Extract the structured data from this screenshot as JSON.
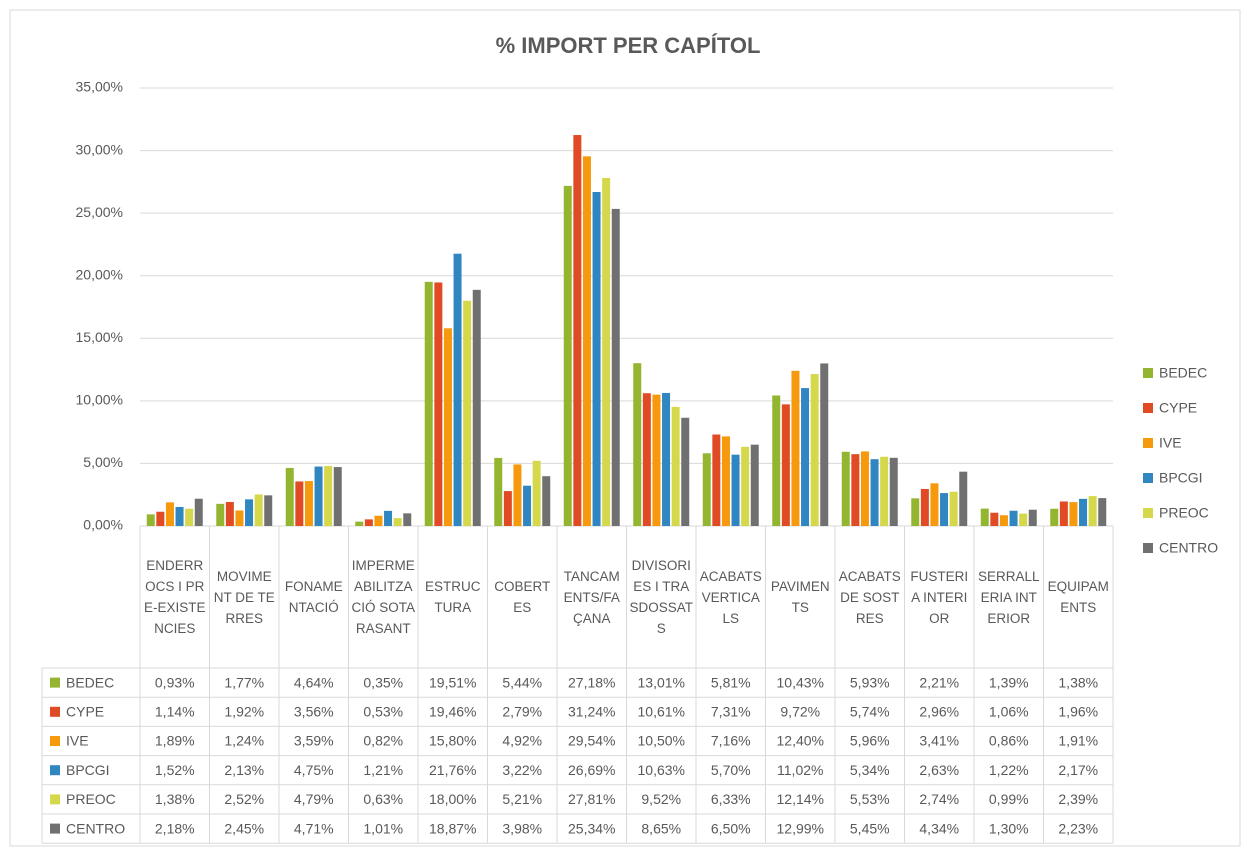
{
  "chart_data": {
    "type": "bar",
    "title": "% IMPORT PER CAPÍTOL",
    "categories": [
      "ENDERROCS I PRE-EXISTENCIES",
      "MOVIMENT DE TERRES",
      "FONAMENTACIÓ",
      "IMPERMEABILITZACIÓ SOTA RASANT",
      "ESTRUCTURA",
      "COBERTES",
      "TANCAMENTS/FAÇANA",
      "DIVISORIES I TRASDOSSATS",
      "ACABATS VERTICALS",
      "PAVIMENTS",
      "ACABATS DE SOSTRES",
      "FUSTERIA INTERIOR",
      "SERRALLERIA INTERIOR",
      "EQUIPAMENTS"
    ],
    "series": [
      {
        "name": "BEDEC",
        "color": "#93b52f",
        "values": [
          0.93,
          1.77,
          4.64,
          0.35,
          19.51,
          5.44,
          27.18,
          13.01,
          5.81,
          10.43,
          5.93,
          2.21,
          1.39,
          1.38
        ],
        "value_labels": [
          "0,93%",
          "1,77%",
          "4,64%",
          "0,35%",
          "19,51%",
          "5,44%",
          "27,18%",
          "13,01%",
          "5,81%",
          "10,43%",
          "5,93%",
          "2,21%",
          "1,39%",
          "1,38%"
        ]
      },
      {
        "name": "CYPE",
        "color": "#e04a24",
        "values": [
          1.14,
          1.92,
          3.56,
          0.53,
          19.46,
          2.79,
          31.24,
          10.61,
          7.31,
          9.72,
          5.74,
          2.96,
          1.06,
          1.96
        ],
        "value_labels": [
          "1,14%",
          "1,92%",
          "3,56%",
          "0,53%",
          "19,46%",
          "2,79%",
          "31,24%",
          "10,61%",
          "7,31%",
          "9,72%",
          "5,74%",
          "2,96%",
          "1,06%",
          "1,96%"
        ]
      },
      {
        "name": "IVE",
        "color": "#f7990c",
        "values": [
          1.89,
          1.24,
          3.59,
          0.82,
          15.8,
          4.92,
          29.54,
          10.5,
          7.16,
          12.4,
          5.96,
          3.41,
          0.86,
          1.91
        ],
        "value_labels": [
          "1,89%",
          "1,24%",
          "3,59%",
          "0,82%",
          "15,80%",
          "4,92%",
          "29,54%",
          "10,50%",
          "7,16%",
          "12,40%",
          "5,96%",
          "3,41%",
          "0,86%",
          "1,91%"
        ]
      },
      {
        "name": "BPCGI",
        "color": "#2f86c0",
        "values": [
          1.52,
          2.13,
          4.75,
          1.21,
          21.76,
          3.22,
          26.69,
          10.63,
          5.7,
          11.02,
          5.34,
          2.63,
          1.22,
          2.17
        ],
        "value_labels": [
          "1,52%",
          "2,13%",
          "4,75%",
          "1,21%",
          "21,76%",
          "3,22%",
          "26,69%",
          "10,63%",
          "5,70%",
          "11,02%",
          "5,34%",
          "2,63%",
          "1,22%",
          "2,17%"
        ]
      },
      {
        "name": "PREOC",
        "color": "#d5d84a",
        "values": [
          1.38,
          2.52,
          4.79,
          0.63,
          18.0,
          5.21,
          27.81,
          9.52,
          6.33,
          12.14,
          5.53,
          2.74,
          0.99,
          2.39
        ],
        "value_labels": [
          "1,38%",
          "2,52%",
          "4,79%",
          "0,63%",
          "18,00%",
          "5,21%",
          "27,81%",
          "9,52%",
          "6,33%",
          "12,14%",
          "5,53%",
          "2,74%",
          "0,99%",
          "2,39%"
        ]
      },
      {
        "name": "CENTRO",
        "color": "#707070",
        "values": [
          2.18,
          2.45,
          4.71,
          1.01,
          18.87,
          3.98,
          25.34,
          8.65,
          6.5,
          12.99,
          5.45,
          4.34,
          1.3,
          2.23
        ],
        "value_labels": [
          "2,18%",
          "2,45%",
          "4,71%",
          "1,01%",
          "18,87%",
          "3,98%",
          "25,34%",
          "8,65%",
          "6,50%",
          "12,99%",
          "5,45%",
          "4,34%",
          "1,30%",
          "2,23%"
        ]
      }
    ],
    "ylim": [
      0,
      35
    ],
    "yticks": [
      {
        "value": 0,
        "label": "0,00%"
      },
      {
        "value": 5,
        "label": "5,00%"
      },
      {
        "value": 10,
        "label": "10,00%"
      },
      {
        "value": 15,
        "label": "15,00%"
      },
      {
        "value": 20,
        "label": "20,00%"
      },
      {
        "value": 25,
        "label": "25,00%"
      },
      {
        "value": 30,
        "label": "30,00%"
      },
      {
        "value": 35,
        "label": "35,00%"
      }
    ],
    "grid": true,
    "legend": "right"
  }
}
